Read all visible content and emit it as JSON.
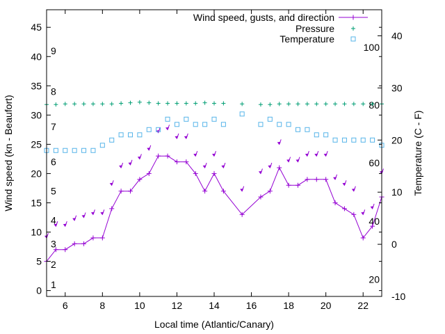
{
  "chart_data": {
    "type": "line",
    "xlabel": "Local time (Atlantic/Canary)",
    "ylabel": "Wind speed (kn - Beaufort)",
    "y2label": "Temperature (C - F)",
    "xlim": [
      5,
      23
    ],
    "ylim": [
      -1,
      48
    ],
    "y2lim": [
      -10,
      45
    ],
    "x_ticks": [
      "6",
      "8",
      "10",
      "12",
      "14",
      "16",
      "18",
      "20",
      "22"
    ],
    "y_ticks": [
      "0",
      "5",
      "10",
      "15",
      "20",
      "25",
      "30",
      "35",
      "40",
      "45"
    ],
    "y2_ticks": [
      "-10",
      "0",
      "10",
      "20",
      "30",
      "40"
    ],
    "beaufort_labels": [
      {
        "label": "1",
        "y": 1
      },
      {
        "label": "2",
        "y": 4.5
      },
      {
        "label": "3",
        "y": 8
      },
      {
        "label": "4",
        "y": 12
      },
      {
        "label": "5",
        "y": 17
      },
      {
        "label": "6",
        "y": 22
      },
      {
        "label": "7",
        "y": 28
      },
      {
        "label": "8",
        "y": 34
      },
      {
        "label": "9",
        "y": 41
      }
    ],
    "fahrenheit_labels": [
      {
        "label": "20",
        "c": -6.7
      },
      {
        "label": "40",
        "c": 4.4
      },
      {
        "label": "60",
        "c": 15.6
      },
      {
        "label": "80",
        "c": 26.7
      },
      {
        "label": "100",
        "c": 37.8
      }
    ],
    "legend": {
      "position": "top-right",
      "entries": [
        "Wind speed, gusts, and direction",
        "Pressure",
        "Temperature"
      ]
    },
    "colors": {
      "wind": "#9400d3",
      "pressure": "#009e73",
      "temperature": "#56b4e9"
    },
    "series": [
      {
        "name": "Wind speed, gusts, and direction",
        "x": [
          5,
          5.5,
          6,
          6.5,
          7,
          7.5,
          8,
          8.5,
          9,
          9.5,
          10,
          10.5,
          11,
          11.5,
          12,
          12.5,
          13,
          13.5,
          14,
          14.5,
          15.5,
          16.5,
          17,
          17.5,
          18,
          18.5,
          19,
          19.5,
          20,
          20.5,
          21,
          21.5,
          22,
          22.5,
          23
        ],
        "y": [
          5,
          7,
          7,
          8,
          8,
          9,
          9,
          14,
          17,
          17,
          19,
          20,
          23,
          23,
          22,
          22,
          20,
          17,
          20,
          17,
          13,
          16,
          17,
          21,
          18,
          18,
          19,
          19,
          19,
          15,
          14,
          13,
          9,
          11,
          16
        ],
        "gusts": [
          9,
          11,
          11,
          12,
          12.5,
          13,
          13,
          18,
          21,
          21.5,
          22.5,
          24,
          27,
          27.5,
          26,
          26,
          23,
          21,
          23,
          21,
          17,
          20,
          21,
          25,
          22,
          22,
          23,
          23,
          23,
          19,
          18,
          17,
          13,
          14,
          20
        ]
      },
      {
        "name": "Pressure",
        "x": [
          5,
          5.5,
          6,
          6.5,
          7,
          7.5,
          8,
          8.5,
          9,
          9.5,
          10,
          10.5,
          11,
          11.5,
          12,
          12.5,
          13,
          13.5,
          14,
          14.5,
          15.5,
          16.5,
          17,
          17.5,
          18,
          18.5,
          19,
          19.5,
          20,
          20.5,
          21,
          21.5,
          22,
          22.5,
          23
        ],
        "y": [
          31.8,
          31.8,
          31.9,
          31.9,
          31.9,
          31.9,
          31.9,
          31.9,
          32,
          32.1,
          32.2,
          32.1,
          32,
          32,
          32,
          32,
          32,
          32.1,
          32,
          32,
          31.9,
          31.8,
          31.8,
          31.9,
          31.9,
          31.9,
          31.9,
          31.9,
          31.9,
          31.9,
          31.9,
          31.9,
          31.9,
          31.9,
          31.9
        ]
      },
      {
        "name": "Temperature",
        "x": [
          5,
          5.5,
          6,
          6.5,
          7,
          7.5,
          8,
          8.5,
          9,
          9.5,
          10,
          10.5,
          11,
          11.5,
          12,
          12.5,
          13,
          13.5,
          14,
          14.5,
          15.5,
          16.5,
          17,
          17.5,
          18,
          18.5,
          19,
          19.5,
          20,
          20.5,
          21,
          21.5,
          22,
          22.5,
          23
        ],
        "y": [
          18,
          18,
          18,
          18,
          18,
          18,
          19,
          20,
          21,
          21,
          21,
          22,
          22,
          24,
          23,
          24,
          23,
          23,
          24,
          23,
          25,
          23,
          24,
          23,
          23,
          22,
          22,
          21,
          21,
          20,
          20,
          20,
          20,
          20,
          19
        ]
      }
    ]
  }
}
